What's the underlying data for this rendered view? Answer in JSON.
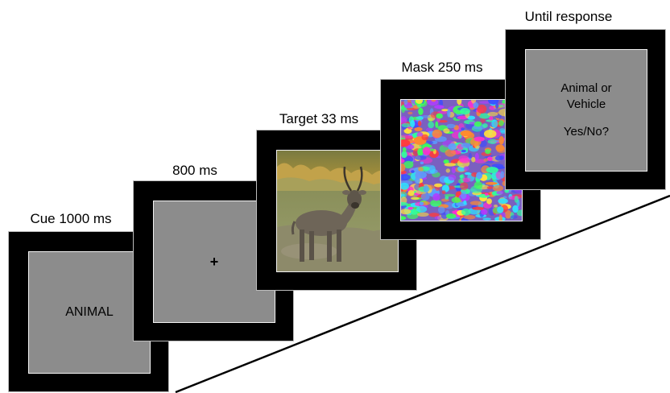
{
  "frames": [
    {
      "label": "Cue 1000 ms",
      "content": "ANIMAL"
    },
    {
      "label": "800 ms",
      "content": "+"
    },
    {
      "label": "Target 33 ms",
      "image": "waterbuck-photo"
    },
    {
      "label": "Mask 250 ms",
      "image": "color-noise-mask"
    },
    {
      "label": "Until response",
      "line1": "Animal or",
      "line2": "Vehicle",
      "line3": "Yes/No?"
    }
  ],
  "colors": {
    "frame": "#000000",
    "screen": "#8c8c8c",
    "background": "#ffffff"
  }
}
